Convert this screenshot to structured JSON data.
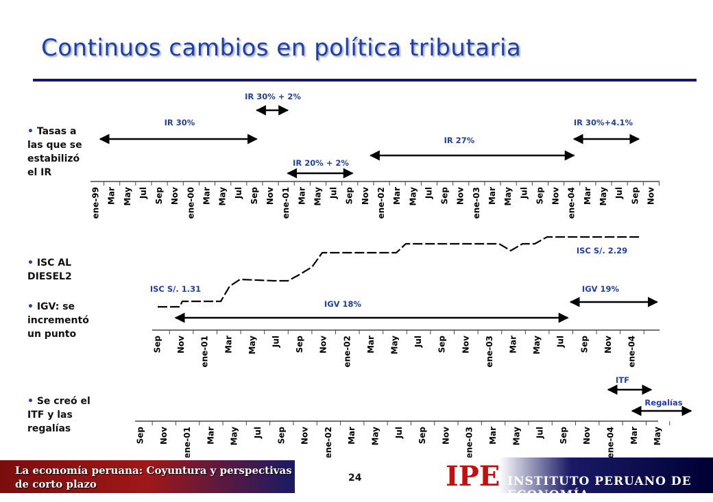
{
  "slide": {
    "title": "Continuos cambios en política tributaria",
    "page_number": "24",
    "footer_text_line1": "La economía peruana: Coyuntura y perspectivas",
    "footer_text_line2": "de corto plazo",
    "logo_text": "IPE",
    "institute_name": "INSTITUTO PERUANO DE ECONOMÍA",
    "colors": {
      "title": "#1f3fa8",
      "rule": "#14147a",
      "annotation": "#1f3fa8",
      "logo": "#c01010"
    }
  },
  "sections": [
    {
      "bullet_icon": "bullet-dot-icon",
      "lines": [
        "Tasas a",
        "las que se",
        "estabilizó",
        "el IR"
      ]
    },
    {
      "bullet_icon": "bullet-dot-icon",
      "lines": [
        "ISC AL",
        "DIESEL2"
      ]
    },
    {
      "bullet_icon": "bullet-dot-icon",
      "lines": [
        "IGV: se",
        "incrementó",
        "un punto"
      ]
    },
    {
      "bullet_icon": "bullet-dot-icon",
      "lines": [
        "Se creó el",
        "ITF y las",
        "regalías"
      ]
    }
  ],
  "chart_data": [
    {
      "type": "timeline",
      "axis_labels": [
        "ene-99",
        "Mar",
        "May",
        "Jul",
        "Sep",
        "Nov",
        "ene-00",
        "Mar",
        "May",
        "Jul",
        "Sep",
        "Nov",
        "ene-01",
        "Mar",
        "May",
        "Jul",
        "Sep",
        "Nov",
        "ene-02",
        "Mar",
        "May",
        "Jul",
        "Sep",
        "Nov",
        "ene-03",
        "Mar",
        "May",
        "Jul",
        "Sep",
        "Nov",
        "ene-04",
        "Mar",
        "May",
        "Jul",
        "Sep",
        "Nov"
      ],
      "ranges": [
        {
          "label": "IR 30%",
          "from": "ene-99",
          "to": "Sep 2000"
        },
        {
          "label": "IR 30% + 2%",
          "from": "Sep 2000",
          "to": "Nov 2000"
        },
        {
          "label": "IR 20% + 2%",
          "from": "Nov 2000",
          "to": "Sep 2001"
        },
        {
          "label": "IR 27%",
          "from": "Nov 2001",
          "to": "ene-04"
        },
        {
          "label": "IR 30%+4.1%",
          "from": "ene-04",
          "to": "Sep 2004"
        }
      ]
    },
    {
      "type": "timeline",
      "axis_labels": [
        "Sep",
        "Nov",
        "ene-01",
        "Mar",
        "May",
        "Jul",
        "Sep",
        "Nov",
        "ene-02",
        "Mar",
        "May",
        "Jul",
        "Sep",
        "Nov",
        "ene-03",
        "Mar",
        "May",
        "Jul",
        "Sep",
        "Nov",
        "ene-04"
      ],
      "annotations": [
        "ISC S/. 1.31",
        "ISC S/. 2.29"
      ],
      "ranges": [
        {
          "label": "IGV 18%",
          "from": "Sep 2000",
          "to": "Jul 2003"
        },
        {
          "label": "IGV 19%",
          "from": "Jul 2003",
          "to": "Mar 2004"
        }
      ]
    },
    {
      "type": "timeline",
      "axis_labels": [
        "Sep",
        "Nov",
        "ene-01",
        "Mar",
        "May",
        "Jul",
        "Sep",
        "Nov",
        "ene-02",
        "Mar",
        "May",
        "Jul",
        "Sep",
        "Nov",
        "ene-03",
        "Mar",
        "May",
        "Jul",
        "Sep",
        "Nov",
        "ene-04",
        "Mar",
        "May"
      ],
      "ranges": [
        {
          "label": "ITF",
          "from": "Nov 2003",
          "to": "Mar 2004"
        },
        {
          "label": "Regalías",
          "from": "Mar 2004",
          "to": "May 2004"
        }
      ]
    }
  ]
}
